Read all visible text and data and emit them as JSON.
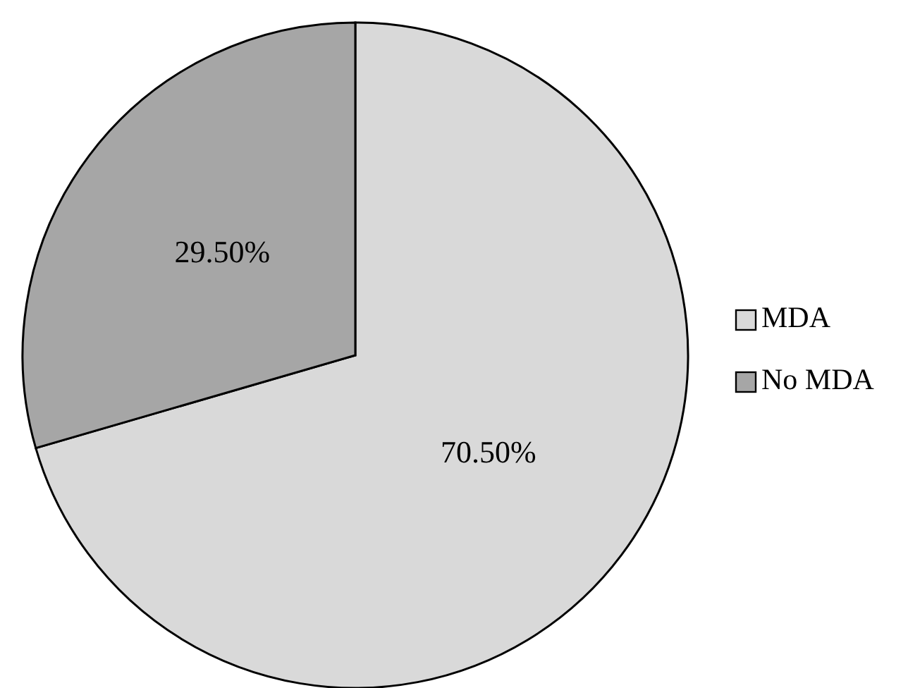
{
  "chart_data": {
    "type": "pie",
    "categories": [
      "MDA",
      "No MDA"
    ],
    "values": [
      70.5,
      29.5
    ],
    "colors": [
      "#d9d9d9",
      "#a6a6a6"
    ],
    "value_labels": [
      "70.50%",
      "29.50%"
    ],
    "legend": "right"
  }
}
